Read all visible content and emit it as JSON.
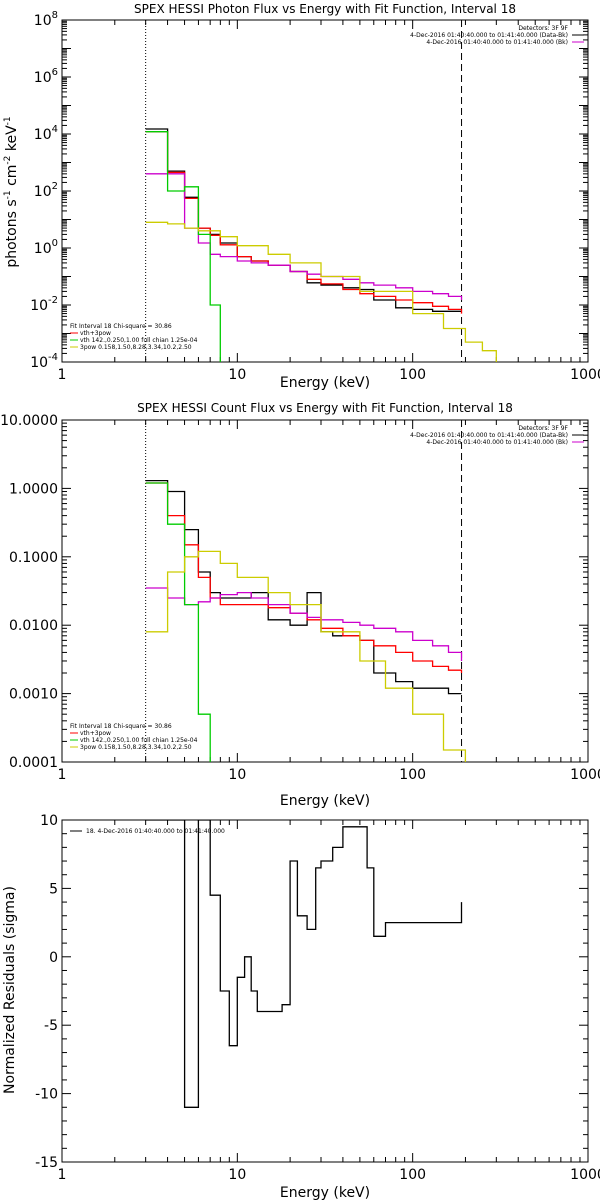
{
  "chart_data": [
    {
      "type": "line",
      "title": "SPEX HESSI Photon Flux vs Energy with Fit Function, Interval 18",
      "xlabel": "Energy (keV)",
      "ylabel_parts": [
        "photons s",
        "-1",
        " cm",
        "-2",
        " keV",
        "-1"
      ],
      "xscale": "log",
      "yscale": "log",
      "xlim": [
        1,
        1000
      ],
      "ylim": [
        0.0001,
        100000000
      ],
      "x_ticks": [
        1,
        10,
        100,
        1000
      ],
      "x_tick_labels": [
        "1",
        "10",
        "100",
        "1000"
      ],
      "y_ticks": [
        0.0001,
        0.01,
        1,
        100,
        10000,
        1000000,
        100000000
      ],
      "y_tick_labels": [
        {
          "base": "10",
          "exp": "-4"
        },
        {
          "base": "10",
          "exp": "-2"
        },
        {
          "base": "10",
          "exp": "0"
        },
        {
          "base": "10",
          "exp": "2"
        },
        {
          "base": "10",
          "exp": "4"
        },
        {
          "base": "10",
          "exp": "6"
        },
        {
          "base": "10",
          "exp": "8"
        }
      ],
      "vlines": [
        {
          "x": 3,
          "style": "dotted",
          "color": "#000000"
        },
        {
          "x": 190,
          "style": "dashed",
          "color": "#000000"
        }
      ],
      "legend_top_right": [
        {
          "text": "Detectors: 3F 9F",
          "color": "#000000"
        },
        {
          "text": "4-Dec-2016 01:40:40.000 to 01:41:40.000 (Data-Bk)",
          "color": "#000000"
        },
        {
          "text": "4-Dec-2016 01:40:40.000 to 01:41:40.000 (Bk)",
          "color": "#cc00cc"
        }
      ],
      "legend_bottom_left": [
        {
          "text": "Fit Interval 18   Chi-square = 30.86",
          "color": "#000000"
        },
        {
          "text": "vth+3pow",
          "color": "#ff0000"
        },
        {
          "text": "vth 142.,0.250,1.00  full chian 1.25e-04",
          "color": "#00cc00"
        },
        {
          "text": "3pow 0.158,1.50,8.28,3.34,10.2,2.50",
          "color": "#cccc00"
        }
      ],
      "series": [
        {
          "color": "#000000",
          "x": [
            3,
            4,
            5,
            6,
            7,
            8,
            10,
            12,
            15,
            20,
            25,
            30,
            40,
            50,
            60,
            80,
            100,
            130,
            160,
            190
          ],
          "values": [
            15000,
            500,
            60,
            5,
            3,
            1.5,
            0.5,
            0.35,
            0.25,
            0.15,
            0.06,
            0.05,
            0.04,
            0.035,
            0.015,
            0.008,
            0.007,
            0.006,
            0.006,
            0.006
          ]
        },
        {
          "color": "#ff0000",
          "x": [
            3,
            4,
            5,
            6,
            7,
            8,
            10,
            12,
            15,
            20,
            25,
            30,
            40,
            50,
            60,
            80,
            100,
            130,
            160,
            190
          ],
          "values": [
            12000,
            450,
            55,
            5,
            2.8,
            1.3,
            0.5,
            0.35,
            0.25,
            0.15,
            0.08,
            0.055,
            0.035,
            0.025,
            0.02,
            0.015,
            0.012,
            0.009,
            0.007,
            0.005
          ]
        },
        {
          "color": "#cc00cc",
          "x": [
            3,
            4,
            5,
            6,
            7,
            8,
            10,
            12,
            15,
            20,
            25,
            30,
            40,
            50,
            60,
            80,
            100,
            130,
            160,
            190
          ],
          "values": [
            400,
            400,
            5,
            1.5,
            0.6,
            0.5,
            0.35,
            0.3,
            0.25,
            0.15,
            0.12,
            0.1,
            0.08,
            0.06,
            0.05,
            0.04,
            0.03,
            0.025,
            0.02,
            0.015
          ]
        },
        {
          "color": "#00cc00",
          "x": [
            3,
            4,
            5,
            6,
            7,
            8
          ],
          "values": [
            12000,
            100,
            140,
            3,
            0.01,
            8e-05
          ]
        },
        {
          "color": "#cccc00",
          "x": [
            3,
            4,
            5,
            6,
            8,
            10,
            15,
            20,
            30,
            50,
            100,
            150,
            200,
            250,
            300
          ],
          "values": [
            8,
            7,
            5,
            4,
            2.5,
            1.2,
            0.6,
            0.3,
            0.1,
            0.03,
            0.005,
            0.0015,
            0.0005,
            0.00025,
            0.0001
          ]
        }
      ]
    },
    {
      "type": "line",
      "title": "SPEX HESSI Count Flux vs Energy with Fit Function, Interval 18",
      "xlabel": "Energy (keV)",
      "ylabel": "",
      "xscale": "log",
      "yscale": "log",
      "xlim": [
        1,
        1000
      ],
      "ylim": [
        0.0001,
        10
      ],
      "x_ticks": [
        1,
        10,
        100,
        1000
      ],
      "x_tick_labels": [
        "1",
        "10",
        "100",
        "1000"
      ],
      "y_ticks": [
        0.0001,
        0.001,
        0.01,
        0.1,
        1,
        10
      ],
      "y_tick_labels": [
        "0.0001",
        "0.0010",
        "0.0100",
        "0.1000",
        "1.0000",
        "10.0000"
      ],
      "vlines": [
        {
          "x": 3,
          "style": "dotted",
          "color": "#000000"
        },
        {
          "x": 190,
          "style": "dashed",
          "color": "#000000"
        }
      ],
      "legend_top_right": [
        {
          "text": "Detectors: 3F 9F",
          "color": "#000000"
        },
        {
          "text": "4-Dec-2016 01:40:40.000 to 01:41:40.000 (Data-Bk)",
          "color": "#000000"
        },
        {
          "text": "4-Dec-2016 01:40:40.000 to 01:41:40.000 (Bk)",
          "color": "#cc00cc"
        }
      ],
      "legend_bottom_left": [
        {
          "text": "Fit Interval 18   Chi-square = 30.86",
          "color": "#000000"
        },
        {
          "text": "vth+3pow",
          "color": "#ff0000"
        },
        {
          "text": "vth 142.,0.250,1.00  full chian 1.25e-04",
          "color": "#00cc00"
        },
        {
          "text": "3pow 0.158,1.50,8.28,3.34,10.2,2.50",
          "color": "#cccc00"
        }
      ],
      "series": [
        {
          "color": "#000000",
          "x": [
            3,
            4,
            5,
            6,
            7,
            8,
            10,
            12,
            15,
            20,
            25,
            30,
            35,
            40,
            50,
            60,
            80,
            100,
            130,
            160,
            190
          ],
          "values": [
            1.3,
            0.9,
            0.25,
            0.06,
            0.03,
            0.025,
            0.025,
            0.03,
            0.012,
            0.01,
            0.03,
            0.008,
            0.007,
            0.007,
            0.006,
            0.002,
            0.0015,
            0.0012,
            0.0012,
            0.001,
            0.001
          ]
        },
        {
          "color": "#ff0000",
          "x": [
            3,
            4,
            5,
            6,
            7,
            8,
            10,
            12,
            15,
            20,
            25,
            30,
            40,
            50,
            60,
            80,
            100,
            130,
            160,
            190
          ],
          "values": [
            1.2,
            0.4,
            0.15,
            0.05,
            0.025,
            0.02,
            0.02,
            0.02,
            0.018,
            0.015,
            0.012,
            0.009,
            0.007,
            0.006,
            0.005,
            0.004,
            0.003,
            0.0025,
            0.0022,
            0.002
          ]
        },
        {
          "color": "#cc00cc",
          "x": [
            3,
            4,
            5,
            6,
            7,
            8,
            10,
            12,
            15,
            20,
            25,
            30,
            40,
            50,
            60,
            80,
            100,
            130,
            160,
            190
          ],
          "values": [
            0.035,
            0.025,
            0.02,
            0.022,
            0.025,
            0.028,
            0.03,
            0.025,
            0.02,
            0.015,
            0.013,
            0.012,
            0.011,
            0.01,
            0.009,
            0.008,
            0.006,
            0.005,
            0.004,
            0.003
          ]
        },
        {
          "color": "#00cc00",
          "x": [
            3,
            4,
            5,
            6,
            7
          ],
          "values": [
            1.2,
            0.3,
            0.02,
            0.0005,
            8e-05
          ]
        },
        {
          "color": "#cccc00",
          "x": [
            3,
            4,
            5,
            6,
            8,
            10,
            15,
            20,
            30,
            50,
            70,
            100,
            150,
            200
          ],
          "values": [
            0.008,
            0.06,
            0.1,
            0.12,
            0.08,
            0.05,
            0.03,
            0.02,
            0.008,
            0.003,
            0.0012,
            0.0005,
            0.00015,
            8e-05
          ]
        }
      ]
    },
    {
      "type": "line",
      "title": "",
      "xlabel": "Energy (keV)",
      "ylabel": "Normalized Residuals (sigma)",
      "xscale": "log",
      "yscale": "linear",
      "xlim": [
        1,
        1000
      ],
      "ylim": [
        -15,
        10
      ],
      "x_ticks": [
        1,
        10,
        100,
        1000
      ],
      "x_tick_labels": [
        "1",
        "10",
        "100",
        "1000"
      ],
      "y_ticks": [
        -15,
        -10,
        -5,
        0,
        5,
        10
      ],
      "y_tick_labels": [
        "-15",
        "-10",
        "-5",
        "0",
        "5",
        "10"
      ],
      "legend_top_left": [
        {
          "text": "18.   4-Dec-2016 01:40:40.000 to 01:41:40.000",
          "color": "#000000"
        }
      ],
      "series": [
        {
          "color": "#000000",
          "x": [
            3,
            4,
            5,
            6,
            7,
            8,
            9,
            10,
            11,
            12,
            13,
            14,
            15,
            18,
            20,
            22,
            25,
            28,
            30,
            35,
            40,
            45,
            50,
            55,
            60,
            70,
            80,
            100,
            130,
            160,
            190
          ],
          "values": [
            10,
            10,
            -11,
            10,
            4.5,
            -2.5,
            -6.5,
            -1.5,
            0,
            -2.5,
            -4,
            -4,
            -4,
            -3.5,
            7,
            3,
            2,
            6.5,
            7,
            8,
            9.5,
            9.5,
            9.5,
            6.5,
            1.5,
            2.5,
            2.5,
            2.5,
            2.5,
            2.5,
            4
          ]
        }
      ]
    }
  ]
}
